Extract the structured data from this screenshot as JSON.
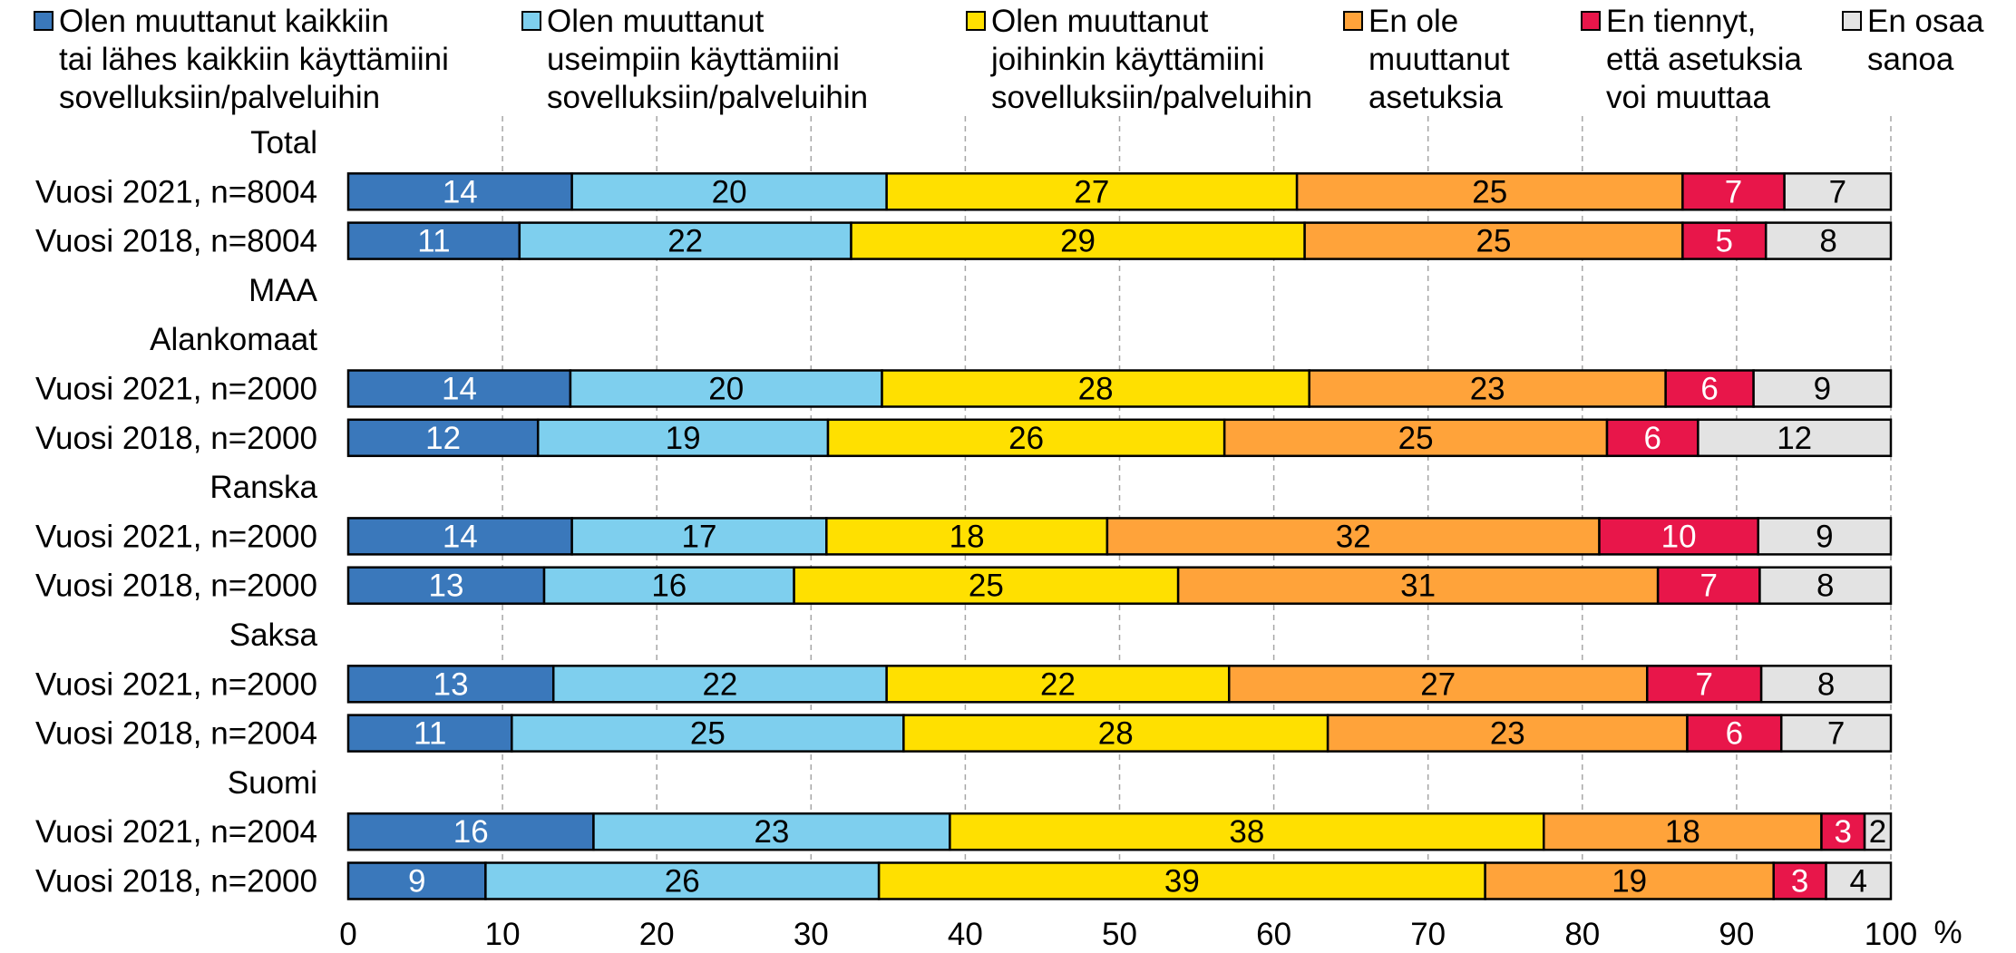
{
  "chart_data": {
    "type": "bar",
    "orientation": "horizontal",
    "stacked": true,
    "unit": "%",
    "xlim": [
      0,
      100
    ],
    "xticks": [
      0,
      10,
      20,
      30,
      40,
      50,
      60,
      70,
      80,
      90,
      100
    ],
    "grid": "vertical dashed",
    "legend_position": "top",
    "series": [
      {
        "name": "Olen muuttanut kaikkiin tai lähes kaikkiin käyttämiini sovelluksiin/palveluihin",
        "legend_lines": [
          "Olen muuttanut kaikkiin",
          "tai lähes kaikkiin käyttämiini",
          "sovelluksiin/palveluihin"
        ],
        "color": "#3a78bb",
        "label_color": "#ffffff"
      },
      {
        "name": "Olen muuttanut useimpiin käyttämiini sovelluksiin/palveluihin",
        "legend_lines": [
          "Olen muuttanut",
          "useimpiin käyttämiini",
          "sovelluksiin/palveluihin"
        ],
        "color": "#7ecfee",
        "label_color": "#000000"
      },
      {
        "name": "Olen muuttanut joihinkin käyttämiini sovelluksiin/palveluihin",
        "legend_lines": [
          "Olen muuttanut",
          "joihinkin käyttämiini",
          "sovelluksiin/palveluihin"
        ],
        "color": "#ffe000",
        "label_color": "#000000"
      },
      {
        "name": "En ole muuttanut asetuksia",
        "legend_lines": [
          "En ole",
          "muuttanut",
          "asetuksia"
        ],
        "color": "#ffa33a",
        "label_color": "#000000"
      },
      {
        "name": "En tiennyt, että asetuksia voi muuttaa",
        "legend_lines": [
          "En tiennyt,",
          "että asetuksia",
          "voi muuttaa"
        ],
        "color": "#e8164a",
        "label_color": "#ffffff"
      },
      {
        "name": "En osaa sanoa",
        "legend_lines": [
          "En osaa",
          "sanoa"
        ],
        "color": "#e3e3e3",
        "label_color": "#000000"
      }
    ],
    "rows": [
      {
        "label": "Total",
        "header": true
      },
      {
        "label": "Vuosi 2021, n=8004",
        "values": [
          14.5,
          20.4,
          26.6,
          25.0,
          6.6,
          6.9
        ],
        "labels": [
          "14",
          "20",
          "27",
          "25",
          "7",
          "7"
        ]
      },
      {
        "label": "Vuosi 2018, n=8004",
        "values": [
          11.1,
          21.5,
          29.4,
          24.5,
          5.4,
          8.1
        ],
        "labels": [
          "11",
          "22",
          "29",
          "25",
          "5",
          "8"
        ]
      },
      {
        "label": "MAA",
        "header": true
      },
      {
        "label": "Alankomaat",
        "header": true
      },
      {
        "label": "Vuosi 2021, n=2000",
        "values": [
          14.4,
          20.2,
          27.7,
          23.1,
          5.7,
          8.9
        ],
        "labels": [
          "14",
          "20",
          "28",
          "23",
          "6",
          "9"
        ]
      },
      {
        "label": "Vuosi 2018, n=2000",
        "values": [
          12.3,
          18.8,
          25.7,
          24.8,
          5.9,
          12.5
        ],
        "labels": [
          "12",
          "19",
          "26",
          "25",
          "6",
          "12"
        ]
      },
      {
        "label": "Ranska",
        "header": true
      },
      {
        "label": "Vuosi 2021, n=2000",
        "values": [
          14.5,
          16.5,
          18.2,
          31.9,
          10.3,
          8.6
        ],
        "labels": [
          "14",
          "17",
          "18",
          "32",
          "10",
          "9"
        ]
      },
      {
        "label": "Vuosi 2018, n=2000",
        "values": [
          12.7,
          16.2,
          24.9,
          31.1,
          6.6,
          8.5
        ],
        "labels": [
          "13",
          "16",
          "25",
          "31",
          "7",
          "8"
        ]
      },
      {
        "label": "Saksa",
        "header": true
      },
      {
        "label": "Vuosi 2021, n=2000",
        "values": [
          13.3,
          21.6,
          22.2,
          27.1,
          7.4,
          8.4
        ],
        "labels": [
          "13",
          "22",
          "22",
          "27",
          "7",
          "8"
        ]
      },
      {
        "label": "Vuosi 2018, n=2004",
        "values": [
          10.6,
          25.4,
          27.5,
          23.3,
          6.1,
          7.1
        ],
        "labels": [
          "11",
          "25",
          "28",
          "23",
          "6",
          "7"
        ]
      },
      {
        "label": "Suomi",
        "header": true
      },
      {
        "label": "Vuosi 2021, n=2004",
        "values": [
          15.9,
          23.1,
          38.5,
          18.0,
          2.8,
          1.7
        ],
        "labels": [
          "16",
          "23",
          "38",
          "18",
          "3",
          "2"
        ]
      },
      {
        "label": "Vuosi 2018, n=2000",
        "values": [
          8.9,
          25.5,
          39.3,
          18.7,
          3.4,
          4.2
        ],
        "labels": [
          "9",
          "26",
          "39",
          "19",
          "3",
          "4"
        ]
      }
    ]
  }
}
